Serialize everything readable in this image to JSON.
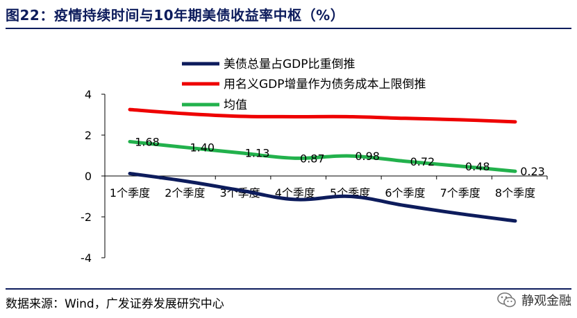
{
  "title": "图22：疫情持续时间与10年期美债收益率中枢（%）",
  "source": "数据来源：Wind，广发证券发展研究中心",
  "watermark": {
    "text": "静观金融",
    "icon": "wechat-icon"
  },
  "chart_data": {
    "type": "line",
    "title": "",
    "xlabel": "",
    "ylabel": "",
    "ylim": [
      -4,
      4
    ],
    "yticks": [
      4,
      2,
      0,
      -2,
      -4
    ],
    "grid": false,
    "legend_position": "top-center",
    "categories": [
      "1个季度",
      "2个季度",
      "3个季度",
      "4个季度",
      "5个季度",
      "6个季度",
      "7个季度",
      "8个季度"
    ],
    "series": [
      {
        "name": "美债总量占GDP比重倒推",
        "color": "#0d1c5c",
        "values": [
          0.12,
          -0.25,
          -0.7,
          -1.15,
          -1.0,
          -1.45,
          -1.85,
          -2.2
        ],
        "labels": null
      },
      {
        "name": "用名义GDP增量作为债务成本上限倒推",
        "color": "#ee0000",
        "values": [
          3.25,
          3.05,
          2.92,
          2.9,
          2.9,
          2.82,
          2.75,
          2.65
        ],
        "labels": null
      },
      {
        "name": "均值",
        "color": "#22b14c",
        "values": [
          1.68,
          1.4,
          1.13,
          0.87,
          0.98,
          0.72,
          0.48,
          0.23
        ],
        "labels": [
          "1.68",
          "1.40",
          "1.13",
          "0.87",
          "0.98",
          "0.72",
          "0.48",
          "0.23"
        ]
      }
    ]
  }
}
